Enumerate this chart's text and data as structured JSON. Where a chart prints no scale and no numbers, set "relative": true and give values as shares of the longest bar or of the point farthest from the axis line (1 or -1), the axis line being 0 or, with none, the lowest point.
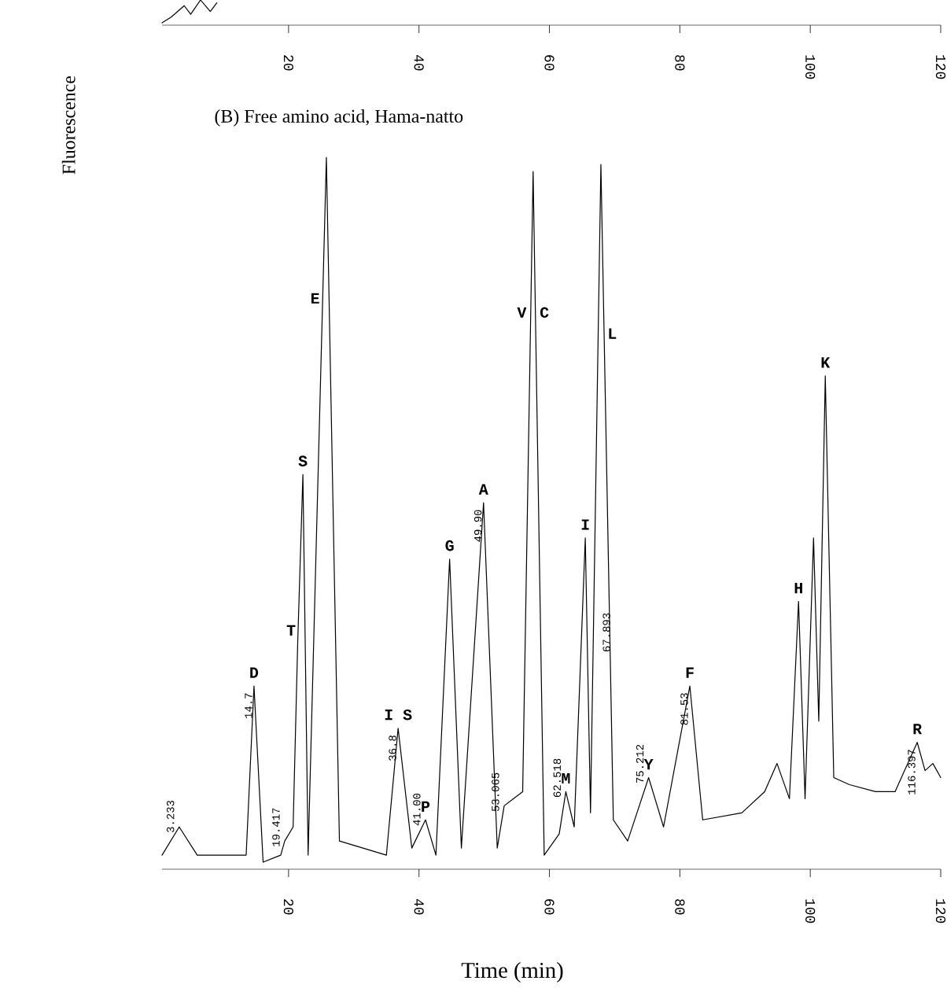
{
  "chart_data": [
    {
      "type": "line",
      "relative": true,
      "color": "#000000",
      "xlim": [
        0.6,
        120
      ],
      "xticks": [
        20,
        40,
        60,
        80,
        100,
        120
      ],
      "x": [
        0.6,
        2.0,
        4.0,
        5.0,
        6.5,
        8.0,
        9.0
      ],
      "values": [
        0.0,
        0.25,
        0.75,
        0.375,
        1.0,
        0.5,
        0.875
      ]
    },
    {
      "type": "line",
      "relative": true,
      "color": "#000000",
      "title": "(B) Free amino acid, Hama-natto",
      "xlabel": "Time (min)",
      "ylabel": "Fluorescence",
      "xlim": [
        0.6,
        120
      ],
      "xticks": [
        20,
        40,
        60,
        80,
        100,
        120
      ],
      "x": [
        0.6,
        3.233,
        6.0,
        13.5,
        14.7,
        16.1,
        18.8,
        19.417,
        20.7,
        21.4,
        22.2,
        23.0,
        25.8,
        27.8,
        35.0,
        36.8,
        38.9,
        41.0,
        42.6,
        44.7,
        46.5,
        49.9,
        52.0,
        53.065,
        55.9,
        57.5,
        59.2,
        61.5,
        62.518,
        63.8,
        65.5,
        66.3,
        67.893,
        69.8,
        72.0,
        75.212,
        77.5,
        81.53,
        83.5,
        89.5,
        93.0,
        94.9,
        96.8,
        98.2,
        99.2,
        100.5,
        101.3,
        102.3,
        103.6,
        106.0,
        110.0,
        113.0,
        116.397,
        117.6,
        118.8,
        120.0
      ],
      "values": [
        0.01,
        0.05,
        0.01,
        0.01,
        0.25,
        0.0,
        0.01,
        0.03,
        0.05,
        0.31,
        0.55,
        0.01,
        1.0,
        0.03,
        0.01,
        0.19,
        0.02,
        0.06,
        0.01,
        0.43,
        0.02,
        0.51,
        0.02,
        0.08,
        0.1,
        0.98,
        0.01,
        0.04,
        0.1,
        0.05,
        0.46,
        0.07,
        0.99,
        0.06,
        0.03,
        0.12,
        0.05,
        0.25,
        0.06,
        0.07,
        0.1,
        0.14,
        0.09,
        0.37,
        0.09,
        0.46,
        0.2,
        0.69,
        0.12,
        0.11,
        0.1,
        0.1,
        0.17,
        0.13,
        0.14,
        0.12
      ],
      "annotations": [
        {
          "text": "D",
          "x": 14.7,
          "y": 0.25
        },
        {
          "text": "T",
          "x": 21.4,
          "y": 0.31
        },
        {
          "text": "S",
          "x": 22.2,
          "y": 0.55
        },
        {
          "text": "E",
          "x": 25.8,
          "y": 0.8
        },
        {
          "text": "I S",
          "x": 36.8,
          "y": 0.19
        },
        {
          "text": "P",
          "x": 41.0,
          "y": 0.06
        },
        {
          "text": "G",
          "x": 44.7,
          "y": 0.43
        },
        {
          "text": "A",
          "x": 49.9,
          "y": 0.51
        },
        {
          "text": "V",
          "x": 57.5,
          "y": 0.78
        },
        {
          "text": "C",
          "x": 57.5,
          "y": 0.78
        },
        {
          "text": "M",
          "x": 62.518,
          "y": 0.1
        },
        {
          "text": "I",
          "x": 65.5,
          "y": 0.46
        },
        {
          "text": "L",
          "x": 67.893,
          "y": 0.75
        },
        {
          "text": "Y",
          "x": 75.212,
          "y": 0.12
        },
        {
          "text": "F",
          "x": 81.53,
          "y": 0.25
        },
        {
          "text": "H",
          "x": 98.2,
          "y": 0.37
        },
        {
          "text": "K",
          "x": 102.3,
          "y": 0.69
        },
        {
          "text": "R",
          "x": 116.397,
          "y": 0.17
        },
        {
          "text": "3.233",
          "x": 3.233,
          "y": 0.05
        },
        {
          "text": "14.7",
          "x": 14.7,
          "y": 0.25
        },
        {
          "text": "19.417",
          "x": 19.417,
          "y": 0.03
        },
        {
          "text": "36.8",
          "x": 36.8,
          "y": 0.19
        },
        {
          "text": "41.00",
          "x": 41.0,
          "y": 0.06
        },
        {
          "text": "49.90",
          "x": 49.9,
          "y": 0.51
        },
        {
          "text": "53.065",
          "x": 53.065,
          "y": 0.08
        },
        {
          "text": "62.518",
          "x": 62.518,
          "y": 0.1
        },
        {
          "text": "67.893",
          "x": 67.893,
          "y": 0.35
        },
        {
          "text": "75.212",
          "x": 75.212,
          "y": 0.12
        },
        {
          "text": "81.53",
          "x": 81.53,
          "y": 0.25
        },
        {
          "text": "116.397",
          "x": 116.397,
          "y": 0.17
        }
      ]
    }
  ]
}
